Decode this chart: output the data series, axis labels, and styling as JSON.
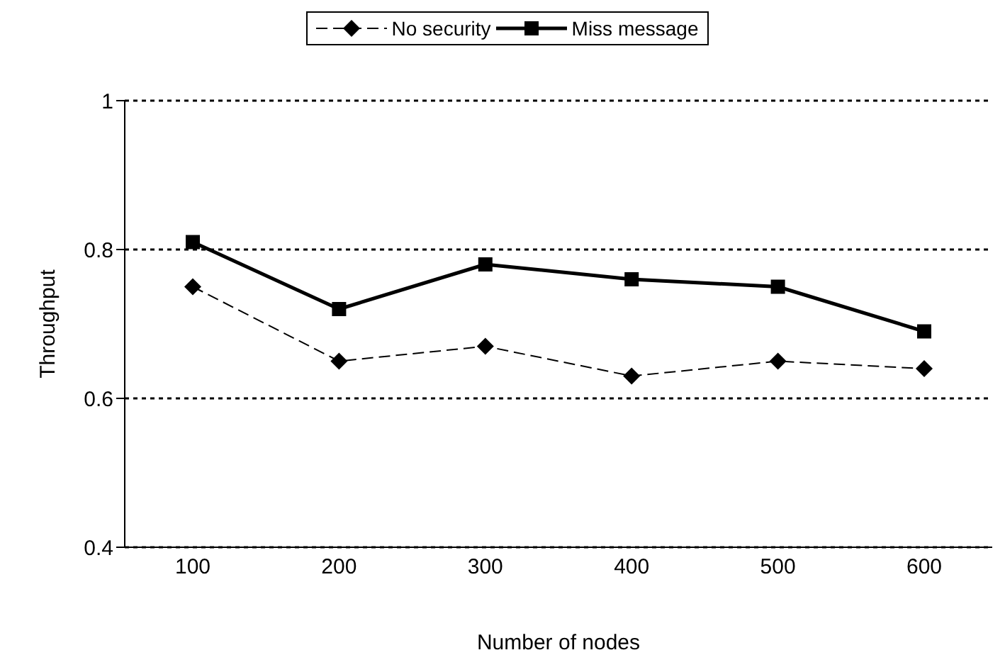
{
  "chart_data": {
    "type": "line",
    "xlabel": "Number of nodes",
    "ylabel": "Throughput",
    "categories": [
      "100",
      "200",
      "300",
      "400",
      "500",
      "600"
    ],
    "series": [
      {
        "name": "No security",
        "color": "#000000",
        "marker": "diamond",
        "line_style": "dashed",
        "values": [
          0.75,
          0.65,
          0.67,
          0.63,
          0.65,
          0.64
        ]
      },
      {
        "name": "Miss message",
        "color": "#000000",
        "marker": "square",
        "line_style": "solid",
        "values": [
          0.81,
          0.72,
          0.78,
          0.76,
          0.75,
          0.69
        ]
      }
    ],
    "ylim": [
      0.4,
      1
    ],
    "yticks": [
      0.4,
      0.6,
      0.8,
      1
    ],
    "grid": "y",
    "legend": "top"
  }
}
